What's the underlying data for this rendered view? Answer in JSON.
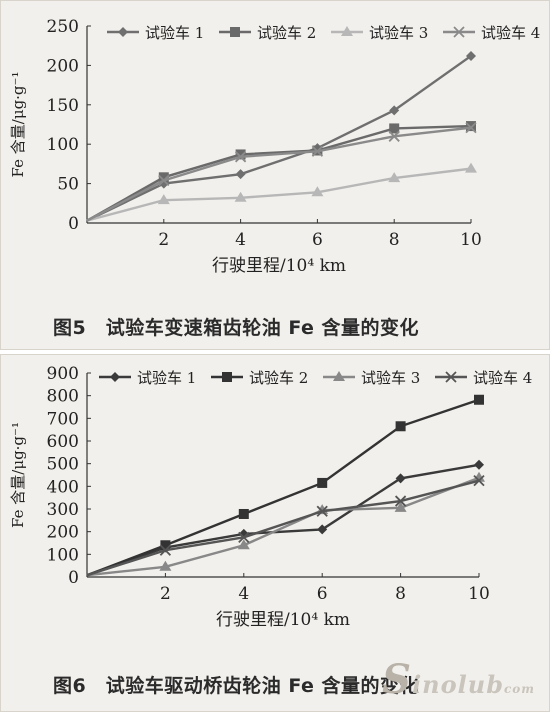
{
  "chart_data": [
    {
      "type": "line",
      "xlabel": "行驶里程/10⁴ km",
      "ylabel": "Fe 含量/μg·g⁻¹",
      "x": [
        0,
        2,
        4,
        6,
        8,
        10
      ],
      "x_ticks": [
        2,
        4,
        6,
        8,
        10
      ],
      "y_ticks": [
        0,
        50,
        100,
        150,
        200,
        250
      ],
      "xlim": [
        0,
        10
      ],
      "ylim": [
        0,
        250
      ],
      "legend": "top",
      "series": [
        {
          "name": "试验车 1",
          "marker": "diamond",
          "color": "#6f6f6f",
          "values": [
            3,
            50,
            62,
            95,
            143,
            212
          ]
        },
        {
          "name": "试验车 2",
          "marker": "square",
          "color": "#6a6a6a",
          "values": [
            3,
            58,
            87,
            92,
            120,
            123
          ]
        },
        {
          "name": "试验车 3",
          "marker": "triangle",
          "color": "#b7b7b7",
          "values": [
            3,
            29,
            32,
            39,
            57,
            69
          ]
        },
        {
          "name": "试验车 4",
          "marker": "x",
          "color": "#8a8a8a",
          "values": [
            3,
            54,
            84,
            91,
            110,
            121
          ]
        }
      ]
    },
    {
      "type": "line",
      "xlabel": "行驶里程/10⁴ km",
      "ylabel": "Fe 含量/μg·g⁻¹",
      "x": [
        0,
        2,
        4,
        6,
        8,
        10
      ],
      "x_ticks": [
        2,
        4,
        6,
        8,
        10
      ],
      "y_ticks": [
        0,
        100,
        200,
        300,
        400,
        500,
        600,
        700,
        800,
        900
      ],
      "xlim": [
        0,
        10
      ],
      "ylim": [
        0,
        900
      ],
      "legend": "top",
      "series": [
        {
          "name": "试验车 1",
          "marker": "diamond",
          "color": "#3a3a3a",
          "values": [
            8,
            130,
            190,
            210,
            435,
            495
          ]
        },
        {
          "name": "试验车 2",
          "marker": "square",
          "color": "#333333",
          "values": [
            8,
            140,
            278,
            415,
            665,
            782
          ]
        },
        {
          "name": "试验车 3",
          "marker": "triangle",
          "color": "#888888",
          "values": [
            8,
            45,
            140,
            295,
            305,
            438
          ]
        },
        {
          "name": "试验车 4",
          "marker": "x",
          "color": "#555555",
          "values": [
            8,
            118,
            175,
            290,
            335,
            425
          ]
        }
      ]
    }
  ],
  "captions": [
    "图5　试验车变速箱齿轮油 Fe 含量的变化",
    "图6　试验车驱动桥齿轮油 Fe 含量的变化"
  ],
  "watermark": {
    "mark": "S",
    "text": "inolub",
    "sub": "com"
  }
}
